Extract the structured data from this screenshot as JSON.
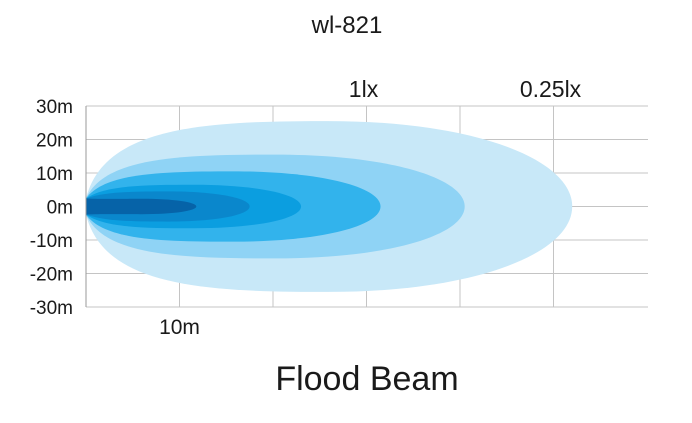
{
  "chart_data": {
    "type": "beam-pattern",
    "title": "wl-821",
    "caption": "Flood Beam",
    "y_ticks": [
      "30m",
      "20m",
      "10m",
      "0m",
      "-10m",
      "-20m",
      "-30m"
    ],
    "y_values": [
      30,
      20,
      10,
      0,
      -10,
      -20,
      -30
    ],
    "ylim": [
      -30,
      30
    ],
    "xlim": [
      0,
      50
    ],
    "x_ticks": [
      {
        "label": "10m",
        "x": 10
      }
    ],
    "grid": true,
    "zones": [
      {
        "name": "zone-1",
        "reach": 52,
        "half_width": 25.5,
        "color": "#c8e8f8"
      },
      {
        "name": "zone-2",
        "reach": 40.5,
        "half_width": 15.5,
        "color": "#8fd3f5"
      },
      {
        "name": "zone-3",
        "reach": 31.5,
        "half_width": 10.5,
        "color": "#32b3ec"
      },
      {
        "name": "zone-4",
        "reach": 23,
        "half_width": 6.5,
        "color": "#0b9ee0"
      },
      {
        "name": "zone-5",
        "reach": 17.5,
        "half_width": 4.5,
        "color": "#0a87cc"
      },
      {
        "name": "zone-6",
        "reach": 11.8,
        "half_width": 2.3,
        "color": "#0663a8"
      }
    ],
    "lux_labels": [
      {
        "label": "1lx",
        "x": 30
      },
      {
        "label": "0.25lx",
        "x": 50
      }
    ]
  }
}
